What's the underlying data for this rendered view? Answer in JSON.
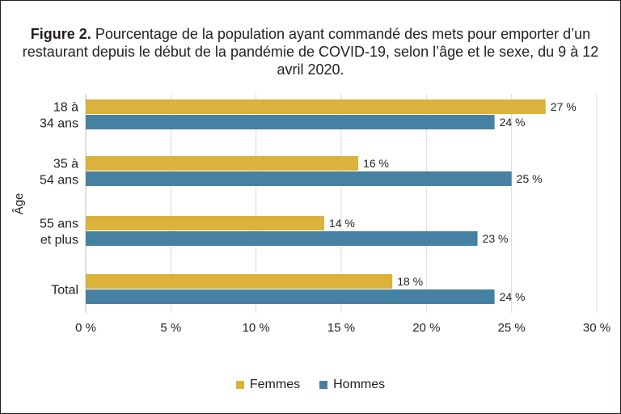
{
  "title": {
    "bold": "Figure 2.",
    "text": "Pourcentage de la population ayant commandé des mets pour emporter d’un restaurant depuis le début de la pandémie de COVID-19, selon l’âge et le sexe, du 9 à 12 avril 2020."
  },
  "chart_data": {
    "type": "bar",
    "orientation": "horizontal",
    "categories": [
      [
        "18 à",
        "34 ans"
      ],
      [
        "35 à",
        "54 ans"
      ],
      [
        "55 ans",
        "et plus"
      ],
      [
        "Total"
      ]
    ],
    "series": [
      {
        "name": "Femmes",
        "values": [
          27,
          16,
          14,
          18
        ],
        "labels": [
          "27 %",
          "16 %",
          "14 %",
          "18 %"
        ],
        "color": "#dbb23b"
      },
      {
        "name": "Hommes",
        "values": [
          24,
          25,
          23,
          24
        ],
        "labels": [
          "24 %",
          "25 %",
          "23 %",
          "24 %"
        ],
        "color": "#4681a3"
      }
    ],
    "xlim": [
      0,
      30
    ],
    "xticks": [
      0,
      5,
      10,
      15,
      20,
      25,
      30
    ],
    "xtick_labels": [
      "0 %",
      "5 %",
      "10 %",
      "15 %",
      "20 %",
      "25 %",
      "30 %"
    ],
    "xlabel": "",
    "ylabel": "Âge",
    "grid": "vertical",
    "legend_position": "bottom"
  }
}
